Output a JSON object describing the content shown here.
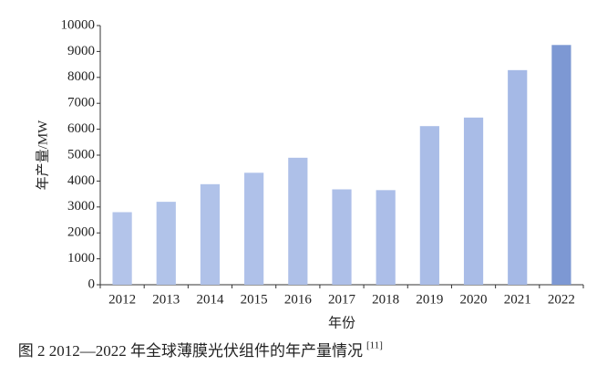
{
  "chart_data": {
    "type": "bar",
    "caption": "图 2 2012—2022 年全球薄膜光伏组件的年产量情况",
    "caption_ref": "[11]",
    "x_label": "年份",
    "y_label": "年产量/MW",
    "categories": [
      "2012",
      "2013",
      "2014",
      "2015",
      "2016",
      "2017",
      "2018",
      "2019",
      "2020",
      "2021",
      "2022"
    ],
    "values": [
      2800,
      3200,
      3880,
      4320,
      4900,
      3680,
      3650,
      6120,
      6450,
      8280,
      9250
    ],
    "colors": [
      "#b3c4ea",
      "#b1c3e9",
      "#b0c2e9",
      "#afc1e9",
      "#aec0e8",
      "#adbfe8",
      "#acbee8",
      "#aabde7",
      "#a9bce7",
      "#a5b9e6",
      "#7d98d3"
    ],
    "ylim": [
      0,
      10000
    ],
    "yticks": [
      0,
      1000,
      2000,
      3000,
      4000,
      5000,
      6000,
      7000,
      8000,
      9000,
      10000
    ]
  }
}
